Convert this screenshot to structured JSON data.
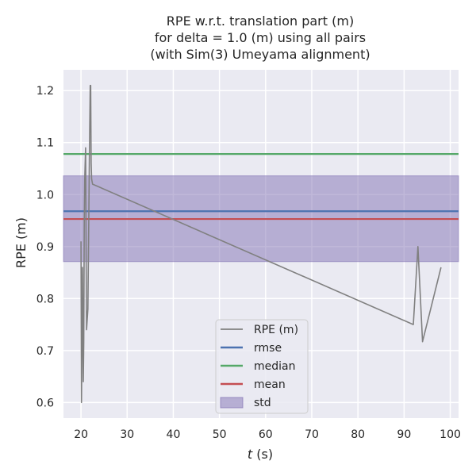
{
  "chart_data": {
    "type": "line",
    "title_lines": [
      "RPE w.r.t. translation part (m)",
      "for delta = 1.0 (m) using all pairs",
      "(with Sim(3) Umeyama alignment)"
    ],
    "xlabel_var": "t",
    "xlabel_unit": " (s)",
    "ylabel": "RPE (m)",
    "xlim": [
      16.2,
      101.8
    ],
    "ylim": [
      0.57,
      1.24
    ],
    "xticks": [
      20,
      30,
      40,
      50,
      60,
      70,
      80,
      90,
      100
    ],
    "yticks": [
      0.6,
      0.7,
      0.8,
      0.9,
      1.0,
      1.1,
      1.2
    ],
    "series": [
      {
        "name": "RPE (m)",
        "color": "#808080",
        "x": [
          20.0,
          20.1,
          20.2,
          20.3,
          20.5,
          20.6,
          20.7,
          20.8,
          21.0,
          21.2,
          21.5,
          21.8,
          22.0,
          22.1,
          22.2,
          22.3,
          22.5,
          92.0,
          93.0,
          94.0,
          98.0
        ],
        "y": [
          0.91,
          0.6,
          0.72,
          0.86,
          0.64,
          0.72,
          0.95,
          1.03,
          1.09,
          0.74,
          0.78,
          1.06,
          1.21,
          1.21,
          1.06,
          1.03,
          1.02,
          0.75,
          0.9,
          0.717,
          0.86
        ]
      }
    ],
    "stats": [
      {
        "name": "rmse",
        "value": 0.968,
        "color": "#4c72b0"
      },
      {
        "name": "median",
        "value": 1.078,
        "color": "#55a868"
      },
      {
        "name": "mean",
        "value": 0.953,
        "color": "#c44e52"
      }
    ],
    "std_band": {
      "name": "std",
      "lower": 0.871,
      "upper": 1.036,
      "color": "#8172b3"
    },
    "legend_position": "lower center",
    "grid": true,
    "background": "#eaeaf2"
  }
}
